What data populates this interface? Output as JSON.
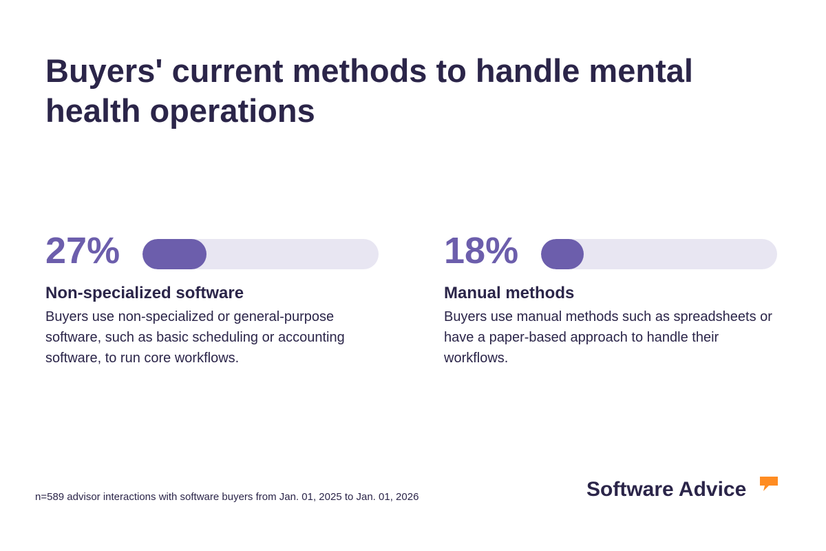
{
  "title": "Buyers' current methods to handle mental health operations",
  "chart_data": {
    "type": "bar",
    "title": "Buyers' current methods to handle mental health operations",
    "categories": [
      "Non-specialized software",
      "Manual methods"
    ],
    "values": [
      27,
      18
    ],
    "value_labels": [
      "27%",
      "18%"
    ],
    "ylim": [
      0,
      100
    ],
    "descriptions": [
      "Buyers use non-specialized or general-purpose software, such as basic scheduling or accounting software, to run core workflows.",
      "Buyers use manual methods such as spreadsheets or have a paper-based approach to handle their workflows."
    ]
  },
  "footnote": "n=589 advisor interactions with software buyers from Jan. 01, 2025 to Jan. 01, 2026",
  "brand": {
    "name": "Software Advice",
    "icon": "speech-bubble-icon",
    "accent_color": "#ff8c22"
  },
  "colors": {
    "text": "#2b2549",
    "bar": "#6c5eac",
    "track": "#e8e6f2"
  }
}
